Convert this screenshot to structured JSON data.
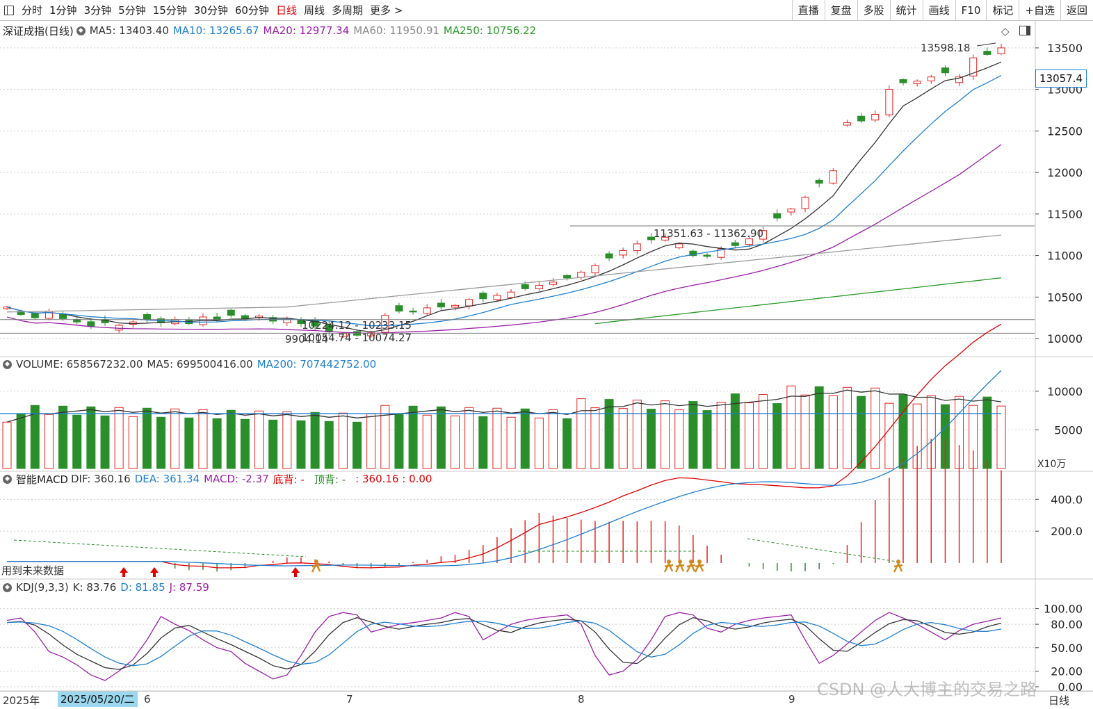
{
  "toolbar": {
    "left": [
      "分时",
      "1分钟",
      "3分钟",
      "5分钟",
      "15分钟",
      "30分钟",
      "60分钟",
      "日线",
      "周线",
      "多周期",
      "更多 >"
    ],
    "active": "日线",
    "right": [
      "直播",
      "复盘",
      "多股",
      "统计",
      "画线",
      "F10",
      "标记",
      "+自选",
      "返回"
    ]
  },
  "colors": {
    "up": "#e8231e",
    "down": "#2a8f2a",
    "ma5": "#333333",
    "ma10": "#1e7fd0",
    "ma20": "#9b1fa8",
    "ma60": "#9a9a9a",
    "ma250": "#2a9a2a",
    "vol_ma200": "#1e7fd0",
    "macd_dif": "#e00000",
    "macd_dea": "#1e7fd0",
    "kdj_k": "#333333",
    "kdj_d": "#1e7fd0",
    "kdj_j": "#9b1fa8"
  },
  "price_panel": {
    "title": "深证成指(日线)",
    "ma5": "MA5: 13403.40",
    "ma10": "MA10: 13265.67",
    "ma20": "MA20: 12977.34",
    "ma60": "MA60: 11950.91",
    "ma250": "MA250: 10756.22",
    "y_ticks": [
      "13500",
      "13000",
      "12500",
      "12000",
      "11500",
      "11000",
      "10500",
      "10000"
    ],
    "current_price": "13057.4",
    "high_label": "13598.18",
    "level_labels": [
      "11351.63 - 11362.90",
      "10224.12 - 10233.15",
      "10054.74 - 10074.27"
    ],
    "low_label": "9904.14"
  },
  "volume_panel": {
    "title": "VOLUME: 658567232.00",
    "ma5": "MA5: 699500416.00",
    "ma200": "MA200: 707442752.00",
    "y_ticks": [
      "10000",
      "5000"
    ],
    "unit": "X10万"
  },
  "macd_panel": {
    "title": "智能MACD",
    "dif": "DIF: 360.16",
    "dea": "DEA: 361.34",
    "macd": "MACD: -2.37",
    "bottom_div": "底背: -",
    "top_div": "顶背: -",
    "extra": ": 360.16 : 0.00",
    "note": "用到未来数据",
    "y_ticks": [
      "400.0",
      "200.0"
    ]
  },
  "kdj_panel": {
    "title": "KDJ(9,3,3)",
    "k": "K: 83.76",
    "d": "D: 81.85",
    "j": "J: 87.59",
    "y_ticks": [
      "100.00",
      "80.00",
      "50.00",
      "20.00",
      "0.00"
    ]
  },
  "date_axis": {
    "year": "2025年",
    "cursor_date": "2025/05/20/二",
    "months": [
      "6",
      "7",
      "8",
      "9"
    ],
    "period": "日线"
  },
  "watermark": "CSDN @人大博主的交易之路",
  "chart_data": {
    "type": "candlestick",
    "series_ohlc_note": "daily index candles approx read from chart",
    "close_start": 10330,
    "close_end": 13500,
    "high": 13598.18,
    "low": 9904.14,
    "ylim": [
      9850,
      13700
    ]
  }
}
